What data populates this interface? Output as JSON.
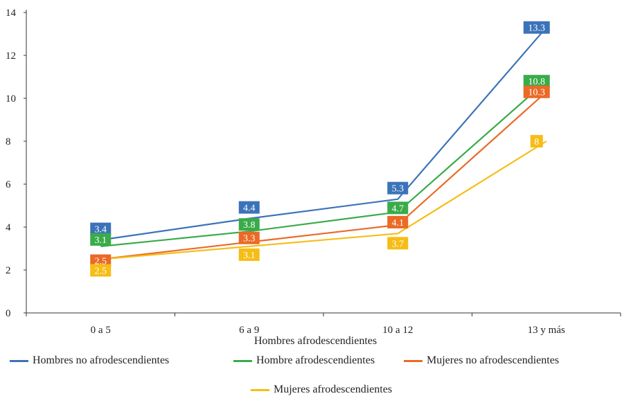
{
  "chart_data": {
    "type": "line",
    "categories": [
      "0 a 5",
      "6 a 9",
      "10 a 12",
      "13 y más"
    ],
    "ylim": [
      0,
      14
    ],
    "yticks": [
      0,
      2,
      4,
      6,
      8,
      10,
      12,
      14
    ],
    "grid": false,
    "legend_position": "bottom",
    "legend_title": "Hombres afrodescendientes",
    "series": [
      {
        "name": "Hombres no afrodescendientes",
        "color": "#3b73b9",
        "values": [
          3.4,
          4.4,
          5.3,
          13.3
        ],
        "labels": [
          "3.4",
          "4.4",
          "5.3",
          "13.3"
        ]
      },
      {
        "name": "Hombre afrodescendientes",
        "color": "#3aab4a",
        "values": [
          3.1,
          3.8,
          4.7,
          10.8
        ],
        "labels": [
          "3.1",
          "3.8",
          "4.7",
          "10.8"
        ]
      },
      {
        "name": "Mujeres no afrodescendientes",
        "color": "#ea6a26",
        "values": [
          2.5,
          3.3,
          4.1,
          10.3
        ],
        "labels": [
          "2.5",
          "3.3",
          "4.1",
          "10.3"
        ]
      },
      {
        "name": "Mujeres afrodescendientes",
        "color": "#f6bd16",
        "values": [
          2.5,
          3.1,
          3.7,
          8
        ],
        "labels": [
          "2.5",
          "3.1",
          "3.7",
          "8"
        ]
      }
    ]
  }
}
